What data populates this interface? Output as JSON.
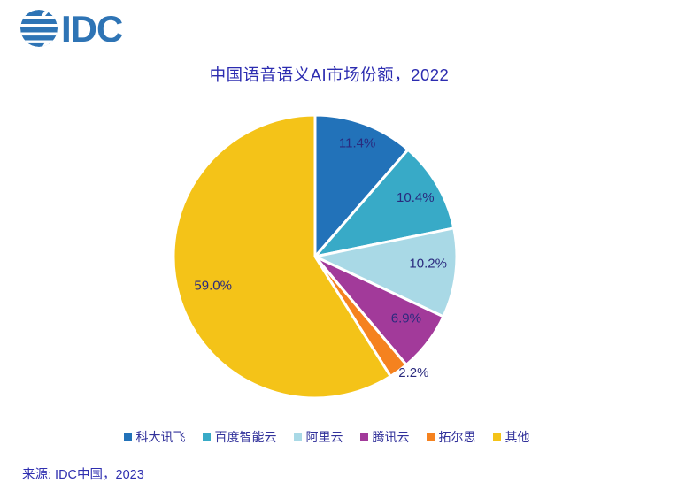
{
  "logo": {
    "text": "IDC",
    "color": "#2E74B5"
  },
  "title": {
    "text": "中国语音语义AI市场份额，2022",
    "color": "#2C2CB0"
  },
  "chart_data": {
    "type": "pie",
    "title": "中国语音语义AI市场份额，2022",
    "unit": "%",
    "start_angle_deg": 0,
    "direction": "clockwise",
    "legend_position": "bottom",
    "label_color": "#2A2A7E",
    "slice_border_color": "#FFFFFF",
    "slices": [
      {
        "name": "科大讯飞",
        "value": 11.4,
        "label": "11.4%",
        "color": "#2272B9",
        "label_placement": "inside"
      },
      {
        "name": "百度智能云",
        "value": 10.4,
        "label": "10.4%",
        "color": "#38AAC7",
        "label_placement": "inside"
      },
      {
        "name": "阿里云",
        "value": 10.2,
        "label": "10.2%",
        "color": "#A9D9E6",
        "label_placement": "inside"
      },
      {
        "name": "腾讯云",
        "value": 6.9,
        "label": "6.9%",
        "color": "#A23A9A",
        "label_placement": "inside"
      },
      {
        "name": "拓尔思",
        "value": 2.2,
        "label": "2.2%",
        "color": "#F5821F",
        "label_placement": "outside"
      },
      {
        "name": "其他",
        "value": 59.0,
        "label": "59.0%",
        "color": "#F4C318",
        "label_placement": "inside"
      }
    ]
  },
  "source": {
    "text": "来源: IDC中国，2023"
  }
}
